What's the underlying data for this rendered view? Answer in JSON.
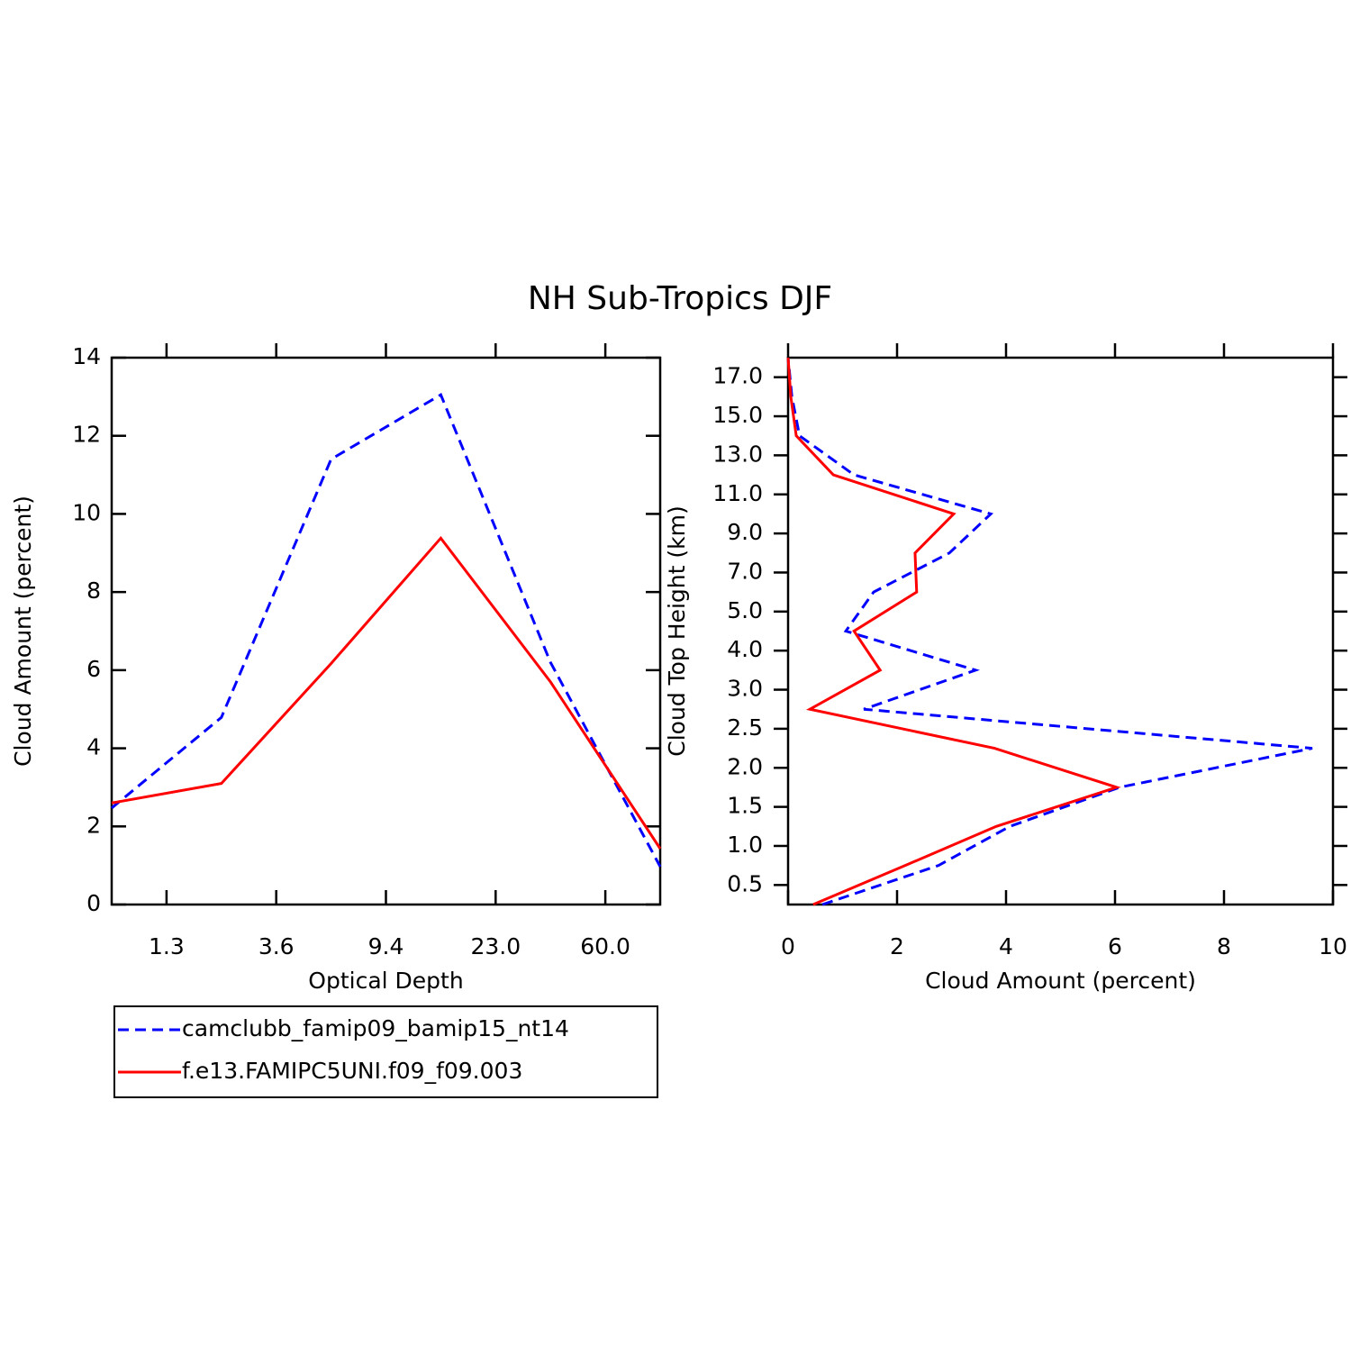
{
  "title": "NH Sub-Tropics DJF",
  "chart_data": [
    {
      "type": "line",
      "x_label": "Optical Depth",
      "y_label": "Cloud Amount (percent)",
      "x": [
        0,
        1,
        2,
        3,
        4,
        5
      ],
      "xlim": [
        0,
        5
      ],
      "xticks": [
        {
          "value": 0.5,
          "label": "1.3"
        },
        {
          "value": 1.5,
          "label": "3.6"
        },
        {
          "value": 2.5,
          "label": "9.4"
        },
        {
          "value": 3.5,
          "label": "23.0"
        },
        {
          "value": 4.5,
          "label": "60.0"
        }
      ],
      "ylim": [
        0,
        14
      ],
      "yticks": [
        0,
        2,
        4,
        6,
        8,
        10,
        12,
        14
      ],
      "legend": "below",
      "series": [
        {
          "name": "camclubb_famip09_bamip15_nt14",
          "color": "#0000ff",
          "dashed": true,
          "values": [
            2.47,
            4.79,
            11.4,
            13.05,
            6.2,
            0.97
          ]
        },
        {
          "name": "f.e13.FAMIPC5UNI.f09_f09.003",
          "color": "#ff0000",
          "dashed": false,
          "values": [
            2.6,
            3.1,
            6.17,
            9.38,
            5.7,
            1.43
          ]
        }
      ]
    },
    {
      "type": "line",
      "orientation": "horizontal",
      "x_label": "Cloud Amount (percent)",
      "y_label": "Cloud Top Height (km)",
      "y": [
        0,
        1,
        2,
        3,
        4,
        5,
        6,
        7,
        8,
        9,
        10,
        11,
        12,
        13,
        14
      ],
      "ylim": [
        0,
        14
      ],
      "yticks": [
        {
          "value": 0.5,
          "label": "0.5"
        },
        {
          "value": 1.5,
          "label": "1.0"
        },
        {
          "value": 2.5,
          "label": "1.5"
        },
        {
          "value": 3.5,
          "label": "2.0"
        },
        {
          "value": 4.5,
          "label": "2.5"
        },
        {
          "value": 5.5,
          "label": "3.0"
        },
        {
          "value": 6.5,
          "label": "4.0"
        },
        {
          "value": 7.5,
          "label": "5.0"
        },
        {
          "value": 8.5,
          "label": "7.0"
        },
        {
          "value": 9.5,
          "label": "9.0"
        },
        {
          "value": 10.5,
          "label": "11.0"
        },
        {
          "value": 11.5,
          "label": "13.0"
        },
        {
          "value": 12.5,
          "label": "15.0"
        },
        {
          "value": 13.5,
          "label": "17.0"
        }
      ],
      "xlim": [
        0,
        10
      ],
      "xticks": [
        0,
        2,
        4,
        6,
        8,
        10
      ],
      "series": [
        {
          "color": "#0000ff",
          "dashed": true,
          "values": [
            0.63,
            2.76,
            4.07,
            6.08,
            9.62,
            1.39,
            3.44,
            1.06,
            1.57,
            2.96,
            3.72,
            1.21,
            0.21,
            0.07,
            0
          ]
        },
        {
          "color": "#ff0000",
          "dashed": false,
          "values": [
            0.46,
            2.15,
            3.82,
            6.03,
            3.79,
            0.4,
            1.69,
            1.21,
            2.36,
            2.33,
            3.04,
            0.83,
            0.15,
            0.05,
            0
          ]
        }
      ]
    }
  ]
}
